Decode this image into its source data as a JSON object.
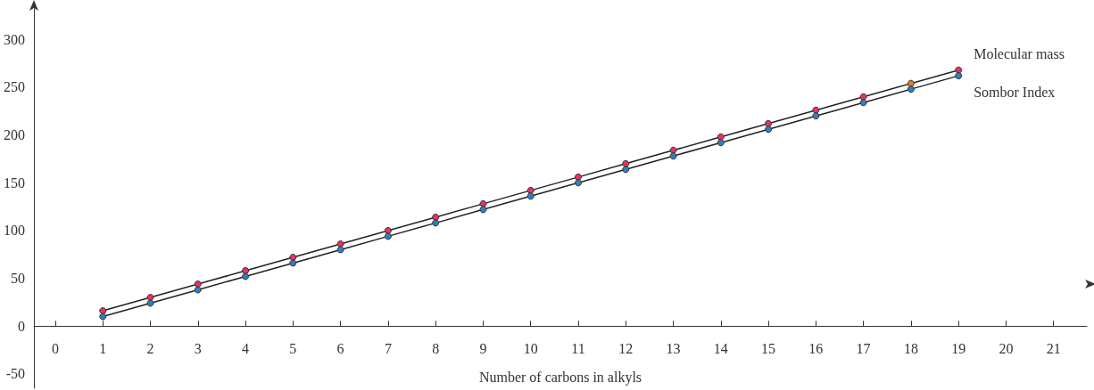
{
  "chart_data": {
    "type": "line",
    "xlabel": "Number of carbons in alkyls",
    "x": [
      1,
      2,
      3,
      4,
      5,
      6,
      7,
      8,
      9,
      10,
      11,
      12,
      13,
      14,
      15,
      16,
      17,
      18,
      19
    ],
    "series": [
      {
        "name": "Molecular mass",
        "color": "#e8325a",
        "colors": [
          "#e8325a",
          "#e8325a",
          "#e8325a",
          "#e8325a",
          "#e8325a",
          "#e8325a",
          "#e8325a",
          "#e8325a",
          "#e8325a",
          "#e8325a",
          "#e8325a",
          "#e8325a",
          "#e8325a",
          "#e8325a",
          "#e8325a",
          "#e8325a",
          "#e8325a",
          "#f07a1a",
          "#e8325a"
        ],
        "values": [
          16,
          30,
          44,
          58,
          72,
          86,
          100,
          114,
          128,
          142,
          156,
          170,
          184,
          198,
          212,
          226,
          240,
          254,
          268
        ]
      },
      {
        "name": "Sombor Index",
        "color": "#2f7fc0",
        "values": [
          10,
          24,
          38,
          52,
          66,
          80,
          94,
          108,
          122,
          136,
          150,
          164,
          178,
          192,
          206,
          220,
          234,
          248,
          262
        ]
      }
    ],
    "xlim": [
      -0.45,
      21.7
    ],
    "xticks": [
      0,
      1,
      2,
      3,
      4,
      5,
      6,
      7,
      8,
      9,
      10,
      11,
      12,
      13,
      14,
      15,
      16,
      17,
      18,
      19,
      20,
      21
    ],
    "ylim": [
      -65,
      332
    ],
    "yticks": [
      -50,
      0,
      50,
      100,
      150,
      200,
      250,
      300
    ],
    "grid": false,
    "legend": false,
    "marker": "circle",
    "line_style": "solid"
  }
}
